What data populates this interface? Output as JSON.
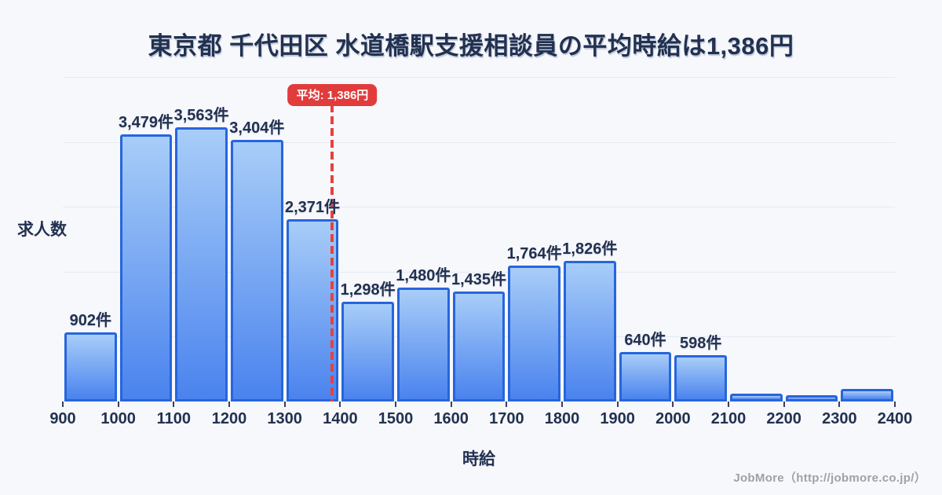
{
  "title": "東京都 千代田区 水道橋駅支援相談員の平均時給は1,386円",
  "average_badge": "平均: 1,386円",
  "ylabel": "求人数",
  "xlabel": "時給",
  "footer": "JobMore（http://jobmore.co.jp/）",
  "colors": {
    "background": "#f7f8fc",
    "bar_fill_top": "#a8cdf8",
    "bar_fill_bottom": "#4a83ee",
    "bar_border": "#2765dd",
    "average_red": "#e23b3c",
    "text_navy": "#223150",
    "gridline": "#e6eaf2",
    "footer_gray": "#9fa1a8"
  },
  "chart_data": {
    "type": "bar",
    "title": "東京都 千代田区 水道橋駅支援相談員の平均時給は1,386円",
    "xlabel": "時給",
    "ylabel": "求人数",
    "x_ticks": [
      900,
      1000,
      1100,
      1200,
      1300,
      1400,
      1500,
      1600,
      1700,
      1800,
      1900,
      2000,
      2100,
      2200,
      2300,
      2400
    ],
    "bin_edges": [
      900,
      1000,
      1100,
      1200,
      1300,
      1400,
      1500,
      1600,
      1700,
      1800,
      1900,
      2000,
      2100,
      2200,
      2300,
      2400
    ],
    "values": [
      902,
      3479,
      3563,
      3404,
      2371,
      1298,
      1480,
      1435,
      1764,
      1826,
      640,
      598,
      100,
      80,
      160
    ],
    "bar_labels": [
      "902件",
      "3,479件",
      "3,563件",
      "3,404件",
      "2,371件",
      "1,298件",
      "1,480件",
      "1,435件",
      "1,764件",
      "1,826件",
      "640件",
      "598件",
      "",
      "",
      ""
    ],
    "average": 1386,
    "average_label": "平均: 1,386円",
    "xlim": [
      900,
      2400
    ],
    "ylim": [
      0,
      4220
    ],
    "grid": "horizontal",
    "gridline_levels": 5,
    "legend": "none"
  }
}
